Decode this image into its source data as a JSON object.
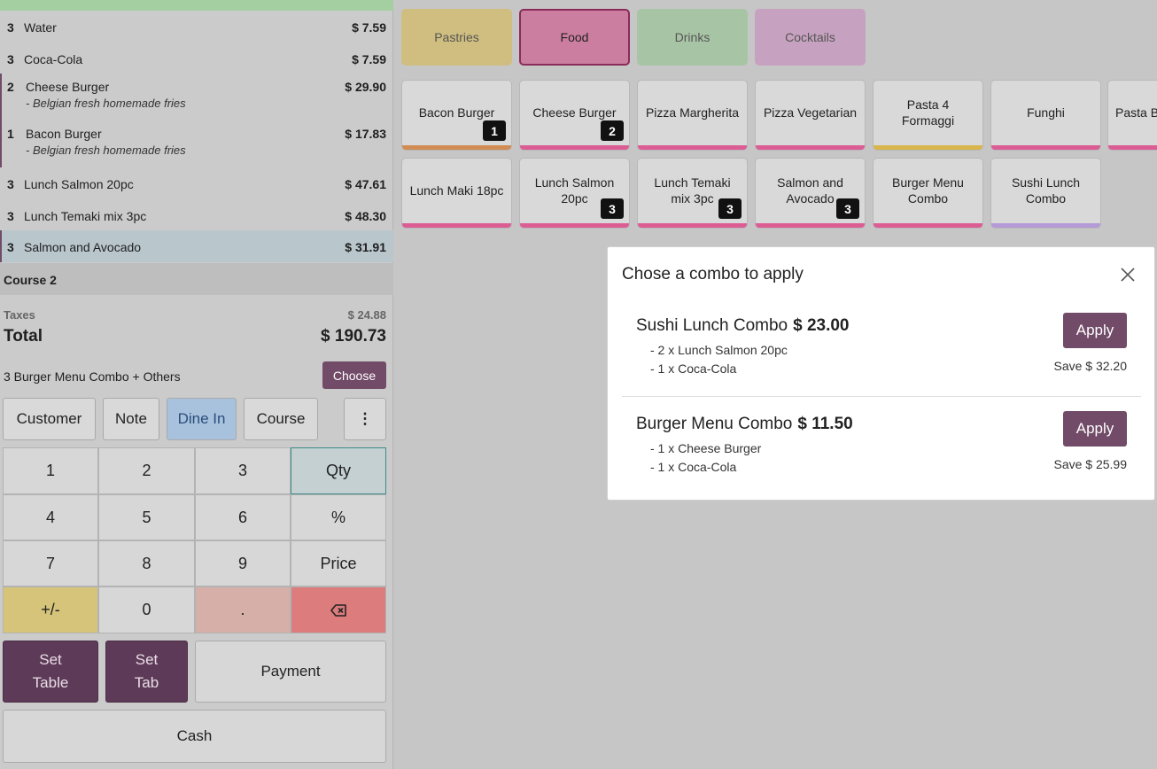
{
  "order": {
    "lines": [
      {
        "qty": "3",
        "name": "Water",
        "price": "$ 7.59"
      },
      {
        "qty": "3",
        "name": "Coca-Cola",
        "price": "$ 7.59"
      },
      {
        "qty": "2",
        "name": "Cheese Burger",
        "price": "$ 29.90",
        "note": "- Belgian fresh homemade fries"
      },
      {
        "qty": "1",
        "name": "Bacon Burger",
        "price": "$ 17.83",
        "note": "- Belgian fresh homemade fries"
      },
      {
        "qty": "3",
        "name": "Lunch Salmon 20pc",
        "price": "$ 47.61"
      },
      {
        "qty": "3",
        "name": "Lunch Temaki mix 3pc",
        "price": "$ 48.30"
      },
      {
        "qty": "3",
        "name": "Salmon and Avocado",
        "price": "$ 31.91"
      }
    ],
    "course_label": "Course 2",
    "taxes_label": "Taxes",
    "taxes_value": "$ 24.88",
    "total_label": "Total",
    "total_value": "$ 190.73",
    "combo_suggestion": "3 Burger Menu Combo + Others",
    "choose_label": "Choose"
  },
  "controls": {
    "customer": "Customer",
    "note": "Note",
    "dine_in": "Dine In",
    "course": "Course",
    "more": "⋮"
  },
  "numpad": {
    "k1": "1",
    "k2": "2",
    "k3": "3",
    "qty": "Qty",
    "k4": "4",
    "k5": "5",
    "k6": "6",
    "percent": "%",
    "k7": "7",
    "k8": "8",
    "k9": "9",
    "price": "Price",
    "plusminus": "+/-",
    "k0": "0",
    "dot": "."
  },
  "actions": {
    "set_table_1": "Set",
    "set_table_2": "Table",
    "set_tab_1": "Set",
    "set_tab_2": "Tab",
    "payment": "Payment",
    "cash": "Cash"
  },
  "categories": [
    {
      "label": "Pastries",
      "color": "#cfbe7f"
    },
    {
      "label": "Food",
      "color": "#cc7ea1"
    },
    {
      "label": "Drinks",
      "color": "#a7c5a5"
    },
    {
      "label": "Cocktails",
      "color": "#c7a2c0"
    }
  ],
  "products": [
    {
      "label": "Bacon Burger",
      "badge": "1",
      "strip": "#d08c52"
    },
    {
      "label": "Cheese Burger",
      "badge": "2",
      "strip": "#db5d94"
    },
    {
      "label": "Pizza Margherita",
      "strip": "#db5d94"
    },
    {
      "label": "Pizza Vegetarian",
      "strip": "#db5d94"
    },
    {
      "label": "Pasta 4 Formaggi",
      "strip": "#d8b64c"
    },
    {
      "label": "Funghi",
      "strip": "#db5d94"
    },
    {
      "label": "Pasta Bolognese",
      "strip": "#db5d94"
    },
    {
      "label": "Lunch Maki 18pc",
      "strip": "#db5d94"
    },
    {
      "label": "Lunch Salmon 20pc",
      "badge": "3",
      "strip": "#db5d94"
    },
    {
      "label": "Lunch Temaki mix 3pc",
      "badge": "3",
      "strip": "#db5d94"
    },
    {
      "label": "Salmon and Avocado",
      "badge": "3",
      "strip": "#db5d94"
    },
    {
      "label": "Burger Menu Combo",
      "strip": "#db5d94"
    },
    {
      "label": "Sushi Lunch Combo",
      "strip": "#b49ad6"
    }
  ],
  "modal": {
    "title": "Chose a combo to apply",
    "combos": [
      {
        "name": "Sushi Lunch Combo",
        "price": "$ 23.00",
        "items": [
          "- 2 x Lunch Salmon 20pc",
          "- 1 x Coca-Cola"
        ],
        "apply": "Apply",
        "save": "Save $ 32.20"
      },
      {
        "name": "Burger Menu Combo",
        "price": "$ 11.50",
        "items": [
          "- 1 x Cheese Burger",
          "- 1 x Coca-Cola"
        ],
        "apply": "Apply",
        "save": "Save $ 25.99"
      }
    ]
  }
}
